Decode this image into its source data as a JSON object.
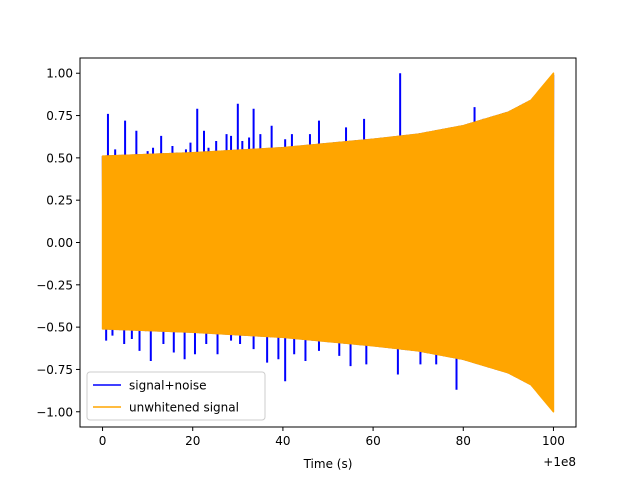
{
  "chart_data": {
    "type": "line",
    "title": "",
    "xlabel": "Time (s)",
    "ylabel": "",
    "x_offset_label": "+1e8",
    "xlim": [
      -5,
      105
    ],
    "ylim": [
      -1.09,
      1.09
    ],
    "x_ticks": [
      0,
      20,
      40,
      60,
      80,
      100
    ],
    "x_tick_labels": [
      "0",
      "20",
      "40",
      "60",
      "80",
      "100"
    ],
    "y_ticks": [
      -1.0,
      -0.75,
      -0.5,
      -0.25,
      0.0,
      0.25,
      0.5,
      0.75,
      1.0
    ],
    "y_tick_labels": [
      "−1.00",
      "−0.75",
      "−0.50",
      "−0.25",
      "0.00",
      "0.25",
      "0.50",
      "0.75",
      "1.00"
    ],
    "grid": false,
    "legend_position": "lower-left",
    "series": [
      {
        "name": "signal+noise",
        "color": "#0000ff",
        "style": "dense oscillation; envelope rises from about ±0.51 at t=0 to about ±0.99 at t=100, plus sparse noise spikes",
        "envelope": [
          {
            "t": 0,
            "amp": 0.51
          },
          {
            "t": 20,
            "amp": 0.53
          },
          {
            "t": 40,
            "amp": 0.56
          },
          {
            "t": 60,
            "amp": 0.61
          },
          {
            "t": 70,
            "amp": 0.64
          },
          {
            "t": 80,
            "amp": 0.69
          },
          {
            "t": 90,
            "amp": 0.77
          },
          {
            "t": 95,
            "amp": 0.84
          },
          {
            "t": 100,
            "amp": 0.99
          }
        ],
        "spikes_positive": [
          {
            "t": 1.2,
            "y": 0.76
          },
          {
            "t": 2.8,
            "y": 0.55
          },
          {
            "t": 5.0,
            "y": 0.72
          },
          {
            "t": 7.5,
            "y": 0.66
          },
          {
            "t": 10.0,
            "y": 0.54
          },
          {
            "t": 11.2,
            "y": 0.56
          },
          {
            "t": 13.0,
            "y": 0.63
          },
          {
            "t": 15.5,
            "y": 0.57
          },
          {
            "t": 16.5,
            "y": 0.53
          },
          {
            "t": 18.5,
            "y": 0.55
          },
          {
            "t": 19.5,
            "y": 0.59
          },
          {
            "t": 21.0,
            "y": 0.79
          },
          {
            "t": 22.5,
            "y": 0.66
          },
          {
            "t": 23.5,
            "y": 0.56
          },
          {
            "t": 25.2,
            "y": 0.6
          },
          {
            "t": 27.5,
            "y": 0.64
          },
          {
            "t": 28.5,
            "y": 0.63
          },
          {
            "t": 30.0,
            "y": 0.82
          },
          {
            "t": 31.0,
            "y": 0.6
          },
          {
            "t": 32.5,
            "y": 0.62
          },
          {
            "t": 33.5,
            "y": 0.79
          },
          {
            "t": 35.0,
            "y": 0.64
          },
          {
            "t": 37.5,
            "y": 0.69
          },
          {
            "t": 40.5,
            "y": 0.61
          },
          {
            "t": 42.0,
            "y": 0.64
          },
          {
            "t": 44.5,
            "y": 0.56
          },
          {
            "t": 46.0,
            "y": 0.64
          },
          {
            "t": 48.0,
            "y": 0.72
          },
          {
            "t": 51.0,
            "y": 0.57
          },
          {
            "t": 54.0,
            "y": 0.68
          },
          {
            "t": 55.5,
            "y": 0.59
          },
          {
            "t": 58.0,
            "y": 0.73
          },
          {
            "t": 62.0,
            "y": 0.57
          },
          {
            "t": 66.0,
            "y": 1.0
          },
          {
            "t": 70.0,
            "y": 0.57
          },
          {
            "t": 75.0,
            "y": 0.62
          },
          {
            "t": 79.0,
            "y": 0.67
          },
          {
            "t": 82.5,
            "y": 0.8
          },
          {
            "t": 84.5,
            "y": 0.73
          },
          {
            "t": 86.5,
            "y": 0.69
          }
        ],
        "spikes_negative": [
          {
            "t": 0.8,
            "y": -0.58
          },
          {
            "t": 2.2,
            "y": -0.55
          },
          {
            "t": 4.8,
            "y": -0.6
          },
          {
            "t": 6.5,
            "y": -0.57
          },
          {
            "t": 8.2,
            "y": -0.64
          },
          {
            "t": 10.7,
            "y": -0.7
          },
          {
            "t": 13.5,
            "y": -0.6
          },
          {
            "t": 15.8,
            "y": -0.65
          },
          {
            "t": 18.2,
            "y": -0.69
          },
          {
            "t": 20.5,
            "y": -0.66
          },
          {
            "t": 23.0,
            "y": -0.6
          },
          {
            "t": 25.5,
            "y": -0.66
          },
          {
            "t": 28.5,
            "y": -0.58
          },
          {
            "t": 30.5,
            "y": -0.6
          },
          {
            "t": 33.5,
            "y": -0.63
          },
          {
            "t": 36.5,
            "y": -0.71
          },
          {
            "t": 39.0,
            "y": -0.69
          },
          {
            "t": 40.5,
            "y": -0.82
          },
          {
            "t": 42.5,
            "y": -0.66
          },
          {
            "t": 45.0,
            "y": -0.7
          },
          {
            "t": 48.0,
            "y": -0.64
          },
          {
            "t": 52.5,
            "y": -0.67
          },
          {
            "t": 55.0,
            "y": -0.73
          },
          {
            "t": 58.5,
            "y": -0.72
          },
          {
            "t": 65.5,
            "y": -0.78
          },
          {
            "t": 70.5,
            "y": -0.72
          },
          {
            "t": 74.0,
            "y": -0.72
          },
          {
            "t": 78.5,
            "y": -0.87
          }
        ]
      },
      {
        "name": "unwhitened signal",
        "color": "#ffa500",
        "style": "dense oscillation; envelope rises from about ±0.51 at t=0 to ±1.00 at t=100",
        "envelope": [
          {
            "t": 0,
            "amp": 0.51
          },
          {
            "t": 20,
            "amp": 0.53
          },
          {
            "t": 40,
            "amp": 0.56
          },
          {
            "t": 60,
            "amp": 0.61
          },
          {
            "t": 70,
            "amp": 0.64
          },
          {
            "t": 80,
            "amp": 0.69
          },
          {
            "t": 90,
            "amp": 0.77
          },
          {
            "t": 95,
            "amp": 0.84
          },
          {
            "t": 100,
            "amp": 1.0
          }
        ]
      }
    ]
  }
}
